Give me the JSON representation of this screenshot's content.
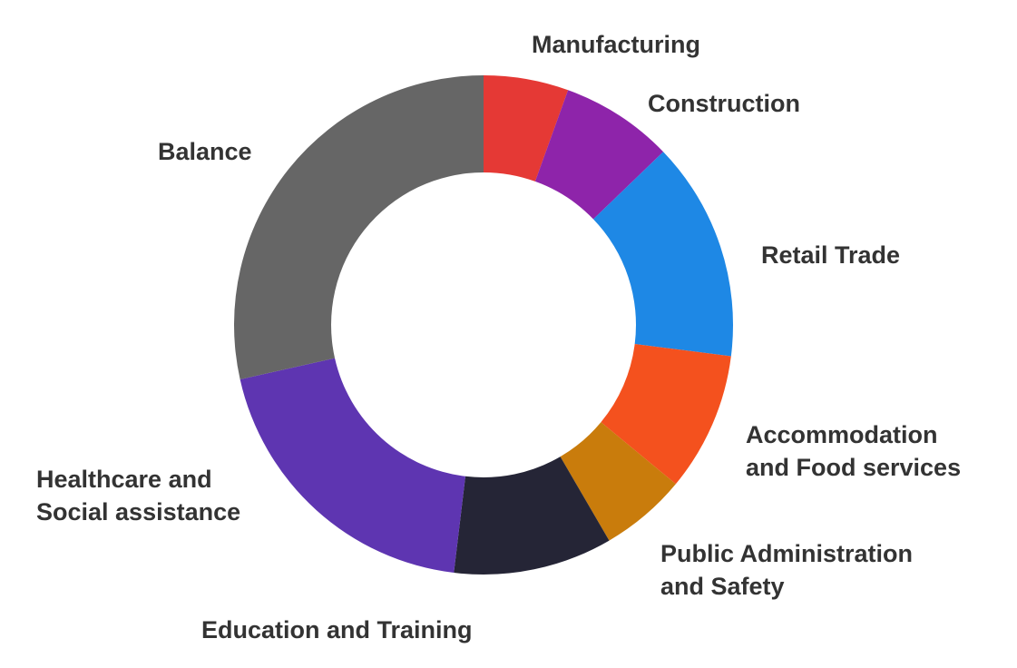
{
  "chart_data": {
    "type": "pie",
    "variant": "donut",
    "legend": "none",
    "slices": [
      {
        "label_lines": [
          "Manufacturing"
        ],
        "value": 5.5,
        "color": "#E53935"
      },
      {
        "label_lines": [
          "Construction"
        ],
        "value": 7.3,
        "color": "#8E24AA"
      },
      {
        "label_lines": [
          "Retail Trade"
        ],
        "value": 14.2,
        "color": "#1E88E5"
      },
      {
        "label_lines": [
          "Accommodation",
          "and Food services"
        ],
        "value": 9.0,
        "color": "#F4511E"
      },
      {
        "label_lines": [
          "Public Administration",
          "and Safety"
        ],
        "value": 5.6,
        "color": "#C97C0C"
      },
      {
        "label_lines": [
          "Education and Training"
        ],
        "value": 10.3,
        "color": "#252536"
      },
      {
        "label_lines": [
          "Healthcare and",
          "Social assistance"
        ],
        "value": 19.6,
        "color": "#5E35B1"
      },
      {
        "label_lines": [
          "Balance"
        ],
        "value": 28.5,
        "color": "#666666"
      }
    ]
  }
}
